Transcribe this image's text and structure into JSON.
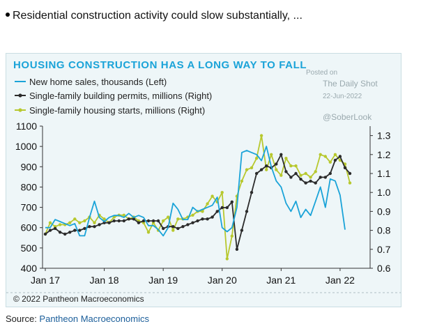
{
  "headline": "Residential construction activity could slow substantially, ...",
  "source_label": "Source: ",
  "source_link": "Pantheon Macroeconomics",
  "chart_data": {
    "type": "line",
    "title": "HOUSING CONSTRUCTION HAS A LONG WAY TO FALL",
    "watermark": [
      "Posted on",
      "The Daily Shot",
      "22-Jun-2022",
      "@SoberLook"
    ],
    "copyright": "© 2022 Pantheon Macroeconomics",
    "xlabels": [
      "Jan 17",
      "Jan 18",
      "Jan 19",
      "Jan 20",
      "Jan 21",
      "Jan 22"
    ],
    "y_left": {
      "min": 400,
      "max": 1100,
      "ticks": [
        400,
        500,
        600,
        700,
        800,
        900,
        1000,
        1100
      ]
    },
    "y_right": {
      "min": 0.6,
      "max": 1.35,
      "ticks": [
        "0.6",
        "0.7",
        "0.8",
        "0.9",
        "1.0",
        "1.1",
        "1.2",
        "1.3"
      ]
    },
    "series": [
      {
        "name": "New home sales, thousands (Left)",
        "axis": "left",
        "color": "#1aa3d8",
        "marker": false,
        "values": [
          600,
          600,
          640,
          630,
          620,
          610,
          620,
          560,
          560,
          650,
          730,
          650,
          630,
          650,
          660,
          660,
          650,
          670,
          650,
          660,
          650,
          610,
          610,
          590,
          560,
          600,
          720,
          690,
          640,
          640,
          700,
          680,
          690,
          700,
          710,
          750,
          600,
          580,
          600,
          700,
          970,
          980,
          970,
          960,
          930,
          1000,
          900,
          830,
          800,
          720,
          680,
          730,
          650,
          690,
          660,
          730,
          800,
          700,
          840,
          830,
          760,
          590
        ]
      },
      {
        "name": "Single-family building permits, millions (Right)",
        "axis": "right",
        "color": "#2b2b2b",
        "marker": true,
        "values": [
          0.78,
          0.8,
          0.81,
          0.79,
          0.78,
          0.79,
          0.8,
          0.8,
          0.81,
          0.82,
          0.82,
          0.83,
          0.84,
          0.84,
          0.85,
          0.85,
          0.85,
          0.86,
          0.86,
          0.84,
          0.85,
          0.85,
          0.85,
          0.85,
          0.81,
          0.82,
          0.82,
          0.81,
          0.82,
          0.83,
          0.84,
          0.85,
          0.86,
          0.86,
          0.87,
          0.9,
          0.92,
          0.92,
          0.95,
          0.7,
          0.8,
          0.9,
          1.0,
          1.1,
          1.12,
          1.14,
          1.13,
          1.15,
          1.2,
          1.11,
          1.08,
          1.1,
          1.07,
          1.05,
          1.06,
          1.05,
          1.08,
          1.08,
          1.1,
          1.17,
          1.19,
          1.13,
          1.1
        ]
      },
      {
        "name": "Single-family housing starts, millions (Right)",
        "axis": "right",
        "color": "#b7c82e",
        "marker": true,
        "values": [
          0.78,
          0.84,
          0.82,
          0.83,
          0.83,
          0.84,
          0.86,
          0.84,
          0.85,
          0.87,
          0.84,
          0.88,
          0.86,
          0.84,
          0.87,
          0.88,
          0.88,
          0.86,
          0.87,
          0.85,
          0.84,
          0.79,
          0.84,
          0.8,
          0.85,
          0.87,
          0.8,
          0.86,
          0.86,
          0.87,
          0.88,
          0.9,
          0.9,
          0.94,
          0.98,
          0.95,
          1.0,
          0.65,
          0.77,
          0.98,
          1.06,
          1.12,
          1.13,
          1.18,
          1.3,
          1.12,
          1.2,
          1.12,
          1.09,
          1.18,
          1.14,
          1.14,
          1.09,
          1.1,
          1.08,
          1.11,
          1.2,
          1.19,
          1.16,
          1.2,
          1.17,
          1.15,
          1.05
        ]
      }
    ]
  }
}
